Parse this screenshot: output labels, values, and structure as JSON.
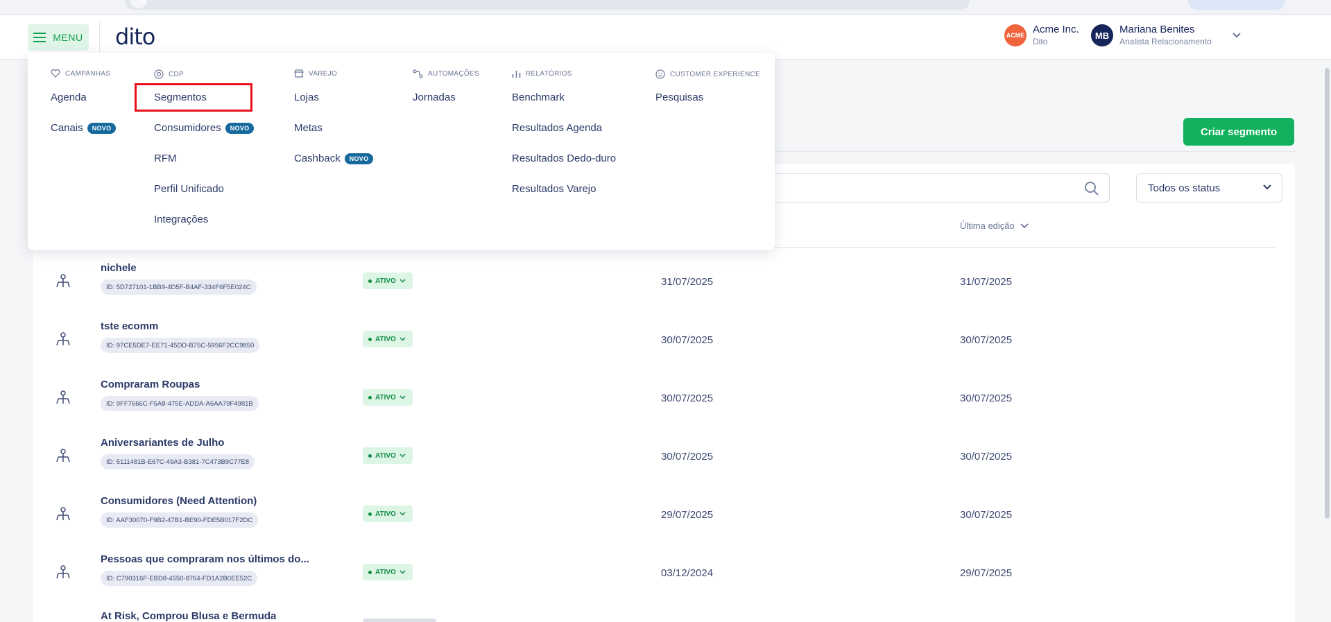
{
  "header": {
    "menu_label": "MENU",
    "logo": "dito",
    "company": {
      "name": "Acme Inc.",
      "sub": "Dito",
      "avatar": "ACME"
    },
    "user": {
      "name": "Mariana Benites",
      "role": "Analista Relacionamento",
      "initials": "MB"
    }
  },
  "page": {
    "create_button": "Criar segmento",
    "status_filter": "Todos os status",
    "column_last_edit": "Última edição"
  },
  "menu": {
    "campanhas": {
      "label": "CAMPANHAS",
      "items": [
        "Agenda",
        "Canais"
      ]
    },
    "cdp": {
      "label": "CDP",
      "items": [
        "Segmentos",
        "Consumidores",
        "RFM",
        "Perfil Unificado",
        "Integrações"
      ]
    },
    "varejo": {
      "label": "VAREJO",
      "items": [
        "Lojas",
        "Metas",
        "Cashback"
      ]
    },
    "automacoes": {
      "label": "AUTOMAÇÕES",
      "items": [
        "Jornadas"
      ]
    },
    "relatorios": {
      "label": "RELATÓRIOS",
      "items": [
        "Benchmark",
        "Resultados Agenda",
        "Resultados Dedo-duro",
        "Resultados Varejo"
      ]
    },
    "cx": {
      "label": "CUSTOMER EXPERIENCE",
      "items": [
        "Pesquisas"
      ]
    },
    "novo_badge": "NOVO"
  },
  "segments": [
    {
      "name": "nichele",
      "id": "ID: 5D727101-1BB9-4D5F-B4AF-334F6F5E024C",
      "status": "ATIVO",
      "created": "31/07/2025",
      "edited": "31/07/2025"
    },
    {
      "name": "tste ecomm",
      "id": "ID: 97CE5DE7-EE71-45DD-B75C-5956F2CC9850",
      "status": "ATIVO",
      "created": "30/07/2025",
      "edited": "30/07/2025"
    },
    {
      "name": "Compraram Roupas",
      "id": "ID: 9FF7666C-F5A8-475E-ADDA-A6AA79F4981B",
      "status": "ATIVO",
      "created": "30/07/2025",
      "edited": "30/07/2025"
    },
    {
      "name": "Aniversariantes de Julho",
      "id": "ID: 5111481B-E67C-49A3-B381-7C473B9C77E8",
      "status": "ATIVO",
      "created": "30/07/2025",
      "edited": "30/07/2025"
    },
    {
      "name": "Consumidores (Need Attention)",
      "id": "ID: AAF30070-F9B2-47B1-BE90-FDE5B017F2DC",
      "status": "ATIVO",
      "created": "29/07/2025",
      "edited": "30/07/2025"
    },
    {
      "name": "Pessoas que compraram nos últimos do...",
      "id": "ID: C790316F-EBD8-4550-8764-FD1A2B0EE52C",
      "status": "ATIVO",
      "created": "03/12/2024",
      "edited": "29/07/2025"
    },
    {
      "name": "At Risk, Comprou Blusa e Bermuda"
    }
  ]
}
